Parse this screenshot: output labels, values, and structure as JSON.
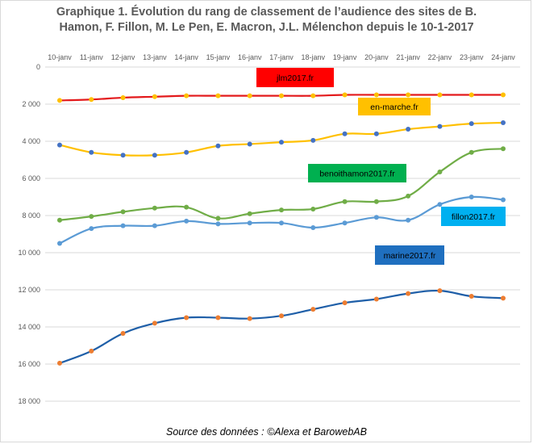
{
  "title": {
    "line1": "Graphique 1. Évolution du rang de classement de l’audience des sites de B.",
    "line2": "Hamon, F. Fillon, M. Le Pen, E. Macron, J.L. Mélenchon depuis le 10-1-2017"
  },
  "source": "Source des données : ©Alexa et BarowebAB",
  "chart_data": {
    "type": "line",
    "categories": [
      "10-janv",
      "11-janv",
      "12-janv",
      "13-janv",
      "14-janv",
      "15-janv",
      "16-janv",
      "17-janv",
      "18-janv",
      "19-janv",
      "20-janv",
      "21-janv",
      "22-janv",
      "23-janv",
      "24-janv"
    ],
    "ylim": [
      0,
      18000
    ],
    "y_reversed": true,
    "yticks": [
      0,
      2000,
      4000,
      6000,
      8000,
      10000,
      12000,
      14000,
      16000,
      18000
    ],
    "ytick_labels": [
      "0",
      "2 000",
      "4 000",
      "6 000",
      "8 000",
      "10 000",
      "12 000",
      "14 000",
      "16 000",
      "18 000"
    ],
    "x_axis_position": "top",
    "grid": true,
    "series": [
      {
        "name": "jlm2017.fr",
        "color": "#e31a1c",
        "marker_color": "#ffc000",
        "label_bg": "#ff0000",
        "label_color": "#000000",
        "values": [
          1800,
          1750,
          1650,
          1600,
          1550,
          1550,
          1550,
          1550,
          1550,
          1500,
          1500,
          1500,
          1500,
          1500,
          1500
        ]
      },
      {
        "name": "en-marche.fr",
        "color": "#ffc000",
        "marker_color": "#4472c4",
        "label_bg": "#ffc000",
        "label_color": "#000000",
        "values": [
          4200,
          4600,
          4750,
          4750,
          4600,
          4250,
          4150,
          4050,
          3950,
          3600,
          3600,
          3350,
          3200,
          3050,
          3000
        ]
      },
      {
        "name": "benoithamon2017.fr",
        "color": "#70ad47",
        "marker_color": "#70ad47",
        "label_bg": "#00b050",
        "label_color": "#000000",
        "values": [
          8250,
          8050,
          7800,
          7600,
          7550,
          8150,
          7900,
          7700,
          7650,
          7250,
          7250,
          6950,
          5650,
          4600,
          4400
        ]
      },
      {
        "name": "fillon2017.fr",
        "color": "#5b9bd5",
        "marker_color": "#5b9bd5",
        "label_bg": "#00b0f0",
        "label_color": "#000000",
        "values": [
          9500,
          8700,
          8550,
          8550,
          8300,
          8450,
          8400,
          8400,
          8650,
          8400,
          8100,
          8250,
          7400,
          7000,
          7150
        ]
      },
      {
        "name": "marine2017.fr",
        "color": "#1f5fa8",
        "marker_color": "#ed7d31",
        "label_bg": "#1f6fbf",
        "label_color": "#000000",
        "values": [
          15950,
          15300,
          14350,
          13800,
          13500,
          13500,
          13550,
          13400,
          13050,
          12700,
          12500,
          12200,
          12050,
          12350,
          12450
        ]
      }
    ]
  }
}
